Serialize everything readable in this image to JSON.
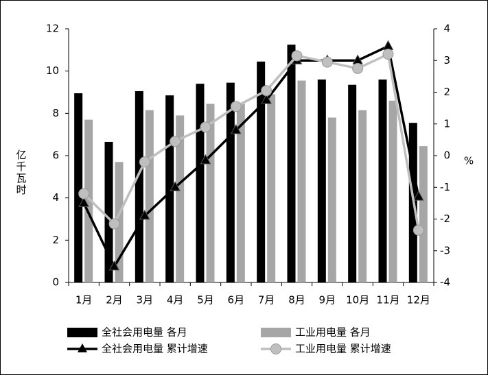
{
  "chart_data": {
    "type": "bar",
    "categories": [
      "1月",
      "2月",
      "3月",
      "4月",
      "5月",
      "6月",
      "7月",
      "8月",
      "9月",
      "10月",
      "11月",
      "12月"
    ],
    "y_label": "亿千瓦时",
    "y2_label": "%",
    "ylim": [
      0,
      12
    ],
    "yticks": [
      0,
      2,
      4,
      6,
      8,
      10,
      12
    ],
    "y2lim": [
      -4,
      4
    ],
    "y2ticks": [
      -4,
      -3,
      -2,
      -1,
      0,
      1,
      2,
      3,
      4
    ],
    "series": [
      {
        "name": "全社会用电量 各月",
        "type": "bar",
        "color": "#000000",
        "values": [
          8.95,
          6.65,
          9.05,
          8.85,
          9.4,
          9.45,
          10.45,
          11.25,
          9.6,
          9.35,
          9.6,
          7.55
        ]
      },
      {
        "name": "工业用电量 各月",
        "type": "bar",
        "color": "#a6a6a6",
        "values": [
          7.7,
          5.7,
          8.15,
          7.9,
          8.45,
          8.45,
          8.9,
          9.55,
          7.8,
          8.15,
          8.6,
          6.45
        ]
      },
      {
        "name": "全社会用电量 累计增速",
        "type": "line",
        "marker": "triangle",
        "axis": "y2",
        "color": "#000000",
        "values": [
          -1.5,
          -3.5,
          -1.9,
          -1.0,
          -0.15,
          0.8,
          1.75,
          3.0,
          3.0,
          3.0,
          3.45,
          -1.3
        ]
      },
      {
        "name": "工业用电量 累计增速",
        "type": "line",
        "marker": "circle",
        "axis": "y2",
        "color": "#bfbfbf",
        "values": [
          -1.2,
          -2.15,
          -0.2,
          0.45,
          0.9,
          1.55,
          2.05,
          3.15,
          2.95,
          2.75,
          3.2,
          -2.35
        ]
      }
    ]
  }
}
